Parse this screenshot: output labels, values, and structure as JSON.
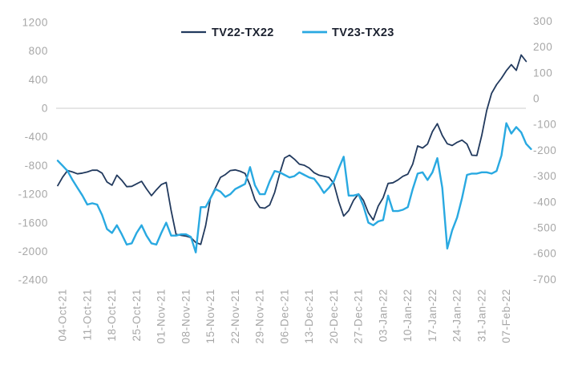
{
  "chart_data": {
    "type": "line",
    "title": "",
    "legend_position": "top",
    "grid": "single-zero-line",
    "legend": [
      {
        "label": "TV22-TX22",
        "color": "#223a5e",
        "axis": "left"
      },
      {
        "label": "TV23-TX23",
        "color": "#29a9e1",
        "axis": "right"
      }
    ],
    "axis_left": {
      "min": -2400,
      "max": 1200,
      "step": 400,
      "labels": [
        "1200",
        "800",
        "400",
        "0",
        "-400",
        "-800",
        "-1200",
        "-1600",
        "-2000",
        "-2400"
      ]
    },
    "axis_right": {
      "min": -700,
      "max": 300,
      "step": 100,
      "labels": [
        "300",
        "200",
        "100",
        "0",
        "-100",
        "-200",
        "-300",
        "-400",
        "-500",
        "-600",
        "-700"
      ]
    },
    "x_tick_labels": [
      "04-Oct-21",
      "11-Oct-21",
      "18-Oct-21",
      "25-Oct-21",
      "01-Nov-21",
      "08-Nov-21",
      "15-Nov-21",
      "22-Nov-21",
      "29-Nov-21",
      "06-Dec-21",
      "13-Dec-21",
      "20-Dec-21",
      "27-Dec-21",
      "03-Jan-22",
      "10-Jan-22",
      "17-Jan-22",
      "24-Jan-22",
      "31-Jan-22",
      "07-Feb-22"
    ],
    "x_tick_indices": [
      1,
      6,
      11,
      16,
      21,
      26,
      31,
      36,
      41,
      46,
      51,
      56,
      61,
      66,
      71,
      76,
      81,
      86,
      91
    ],
    "series": [
      {
        "name": "TV22-TX22",
        "axis": "left",
        "color": "#223a5e",
        "width": 1.8,
        "values": [
          -1080,
          -960,
          -870,
          -890,
          -915,
          -905,
          -890,
          -865,
          -865,
          -905,
          -1030,
          -1075,
          -935,
          -1005,
          -1095,
          -1090,
          -1055,
          -1020,
          -1125,
          -1220,
          -1140,
          -1065,
          -1035,
          -1430,
          -1760,
          -1775,
          -1785,
          -1805,
          -1875,
          -1900,
          -1640,
          -1250,
          -1110,
          -965,
          -925,
          -870,
          -860,
          -880,
          -910,
          -1075,
          -1280,
          -1385,
          -1395,
          -1350,
          -1175,
          -915,
          -695,
          -655,
          -710,
          -780,
          -795,
          -835,
          -900,
          -935,
          -950,
          -965,
          -1050,
          -1305,
          -1505,
          -1430,
          -1285,
          -1195,
          -1285,
          -1460,
          -1560,
          -1365,
          -1250,
          -1050,
          -1040,
          -1000,
          -950,
          -920,
          -780,
          -525,
          -555,
          -500,
          -325,
          -215,
          -380,
          -495,
          -520,
          -475,
          -445,
          -500,
          -655,
          -660,
          -380,
          -30,
          210,
          330,
          420,
          525,
          610,
          530,
          745,
          655
        ]
      },
      {
        "name": "TV23-TX23",
        "axis": "right",
        "color": "#29a9e1",
        "width": 2.4,
        "values": [
          -240,
          -260,
          -280,
          -315,
          -345,
          -375,
          -410,
          -405,
          -410,
          -450,
          -505,
          -520,
          -490,
          -525,
          -565,
          -560,
          -520,
          -490,
          -530,
          -560,
          -565,
          -520,
          -480,
          -530,
          -530,
          -525,
          -525,
          -535,
          -595,
          -420,
          -420,
          -385,
          -350,
          -360,
          -380,
          -370,
          -350,
          -340,
          -330,
          -265,
          -335,
          -370,
          -370,
          -320,
          -280,
          -285,
          -295,
          -305,
          -300,
          -285,
          -295,
          -305,
          -310,
          -335,
          -365,
          -345,
          -320,
          -270,
          -225,
          -375,
          -375,
          -370,
          -415,
          -480,
          -490,
          -475,
          -470,
          -375,
          -435,
          -435,
          -430,
          -420,
          -350,
          -290,
          -285,
          -315,
          -285,
          -230,
          -345,
          -580,
          -510,
          -460,
          -385,
          -295,
          -290,
          -290,
          -285,
          -285,
          -290,
          -280,
          -220,
          -95,
          -135,
          -110,
          -130,
          -175,
          -195
        ]
      }
    ],
    "colors": {
      "zero_gridline": "#d6d6d6",
      "axis_text": "#a7a7a7",
      "legend_text": "#1c2230",
      "background": "#ffffff"
    }
  },
  "legend": {
    "series1": "TV22-TX22",
    "series2": "TV23-TX23"
  }
}
